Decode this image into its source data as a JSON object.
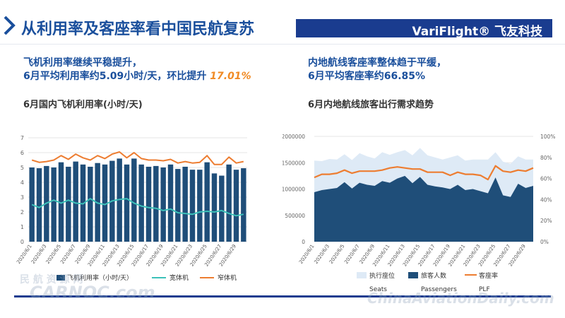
{
  "header": {
    "title": "从利用率及客座率看中国民航复苏",
    "brand": "VariFlight® 飞友科技"
  },
  "left": {
    "headline_line1": "飞机利用率继续平稳提升，",
    "headline_line2": "6月平均利用率约5.09小时/天，环比提升",
    "headline_highlight": "17.01%",
    "chart_title": "6月国内飞机利用率(小时/天)"
  },
  "right": {
    "headline_line1": "内地航线客座率整体趋于平缓，",
    "headline_line2": "6月平均客座率约66.85%",
    "chart_title": "6月内地航线旅客出行需求趋势"
  },
  "watermarks": {
    "left_top": "民 航 资 源 网",
    "left_bottom": "CARNOC.com",
    "right": "ChinaAviationDaily.com"
  },
  "colors": {
    "title_blue": "#1a4f9c",
    "brand_bar": "#1a3c8f",
    "bar_navy": "#1f4e79",
    "widebody_teal": "#3cc1b9",
    "narrowbody_orange": "#ed7d31",
    "seats_light": "#deeaf6",
    "passengers_navy": "#1f4e79",
    "highlight_orange": "#f08a24"
  },
  "chart_data": [
    {
      "type": "bar",
      "title": "6月国内飞机利用率(小时/天)",
      "categories": [
        "2020/6/1",
        "2020/6/2",
        "2020/6/3",
        "2020/6/4",
        "2020/6/5",
        "2020/6/6",
        "2020/6/7",
        "2020/6/8",
        "2020/6/9",
        "2020/6/10",
        "2020/6/11",
        "2020/6/12",
        "2020/6/13",
        "2020/6/14",
        "2020/6/15",
        "2020/6/16",
        "2020/6/17",
        "2020/6/18",
        "2020/6/19",
        "2020/6/20",
        "2020/6/21",
        "2020/6/22",
        "2020/6/23",
        "2020/6/24",
        "2020/6/25",
        "2020/6/26",
        "2020/6/27",
        "2020/6/28",
        "2020/6/29",
        "2020/6/30"
      ],
      "tick_labels": [
        "2020/6/1",
        "2020/6/3",
        "2020/6/5",
        "2020/6/7",
        "2020/6/9",
        "2020/6/11",
        "2020/6/13",
        "2020/6/15",
        "2020/6/17",
        "2020/6/19",
        "2020/6/21",
        "2020/6/23",
        "2020/6/25",
        "2020/6/27",
        "2020/6/29"
      ],
      "series": [
        {
          "name": "飞机利用率（小时/天）",
          "type": "bar",
          "values": [
            5.0,
            4.95,
            5.1,
            5.0,
            5.35,
            5.05,
            5.4,
            5.2,
            5.05,
            5.3,
            5.2,
            5.45,
            5.6,
            5.2,
            5.6,
            5.2,
            5.05,
            5.1,
            5.0,
            5.2,
            4.9,
            5.05,
            4.85,
            4.85,
            5.35,
            4.6,
            4.45,
            5.2,
            4.85,
            4.95
          ]
        },
        {
          "name": "宽体机",
          "type": "line",
          "values": [
            2.5,
            2.3,
            2.6,
            2.8,
            2.6,
            2.8,
            2.6,
            2.55,
            2.9,
            2.6,
            2.5,
            2.75,
            2.85,
            2.9,
            2.6,
            2.4,
            2.3,
            2.25,
            2.1,
            2.2,
            1.95,
            1.9,
            1.85,
            2.0,
            2.05,
            2.0,
            2.1,
            1.9,
            1.75,
            1.85
          ]
        },
        {
          "name": "窄体机",
          "type": "line",
          "values": [
            5.5,
            5.35,
            5.4,
            5.5,
            5.8,
            5.55,
            5.9,
            5.65,
            5.5,
            5.8,
            5.6,
            5.9,
            6.05,
            5.65,
            6.0,
            5.6,
            5.5,
            5.5,
            5.45,
            5.55,
            5.3,
            5.4,
            5.3,
            5.35,
            5.8,
            5.2,
            5.2,
            5.7,
            5.3,
            5.4
          ]
        }
      ],
      "ylim": [
        0,
        7
      ],
      "yticks": [
        0,
        1,
        2,
        3,
        4,
        5,
        6,
        7
      ],
      "legend": "bottom"
    },
    {
      "type": "area",
      "title": "6月内地航线旅客出行需求趋势",
      "categories": [
        "2020/6/1",
        "2020/6/2",
        "2020/6/3",
        "2020/6/4",
        "2020/6/5",
        "2020/6/6",
        "2020/6/7",
        "2020/6/8",
        "2020/6/9",
        "2020/6/10",
        "2020/6/11",
        "2020/6/12",
        "2020/6/13",
        "2020/6/14",
        "2020/6/15",
        "2020/6/16",
        "2020/6/17",
        "2020/6/18",
        "2020/6/19",
        "2020/6/20",
        "2020/6/21",
        "2020/6/22",
        "2020/6/23",
        "2020/6/24",
        "2020/6/25",
        "2020/6/26",
        "2020/6/27",
        "2020/6/28",
        "2020/6/29",
        "2020/6/30"
      ],
      "tick_labels": [
        "2020/6/1",
        "2020/6/3",
        "2020/6/5",
        "2020/6/7",
        "2020/6/9",
        "2020/6/11",
        "2020/6/13",
        "2020/6/15",
        "2020/6/17",
        "2020/6/19",
        "2020/6/21",
        "2020/6/23",
        "2020/6/25",
        "2020/6/27",
        "2020/6/29"
      ],
      "series": [
        {
          "name": "执行座位",
          "sublabel": "Seats",
          "type": "area",
          "values": [
            1540000,
            1530000,
            1570000,
            1560000,
            1660000,
            1550000,
            1680000,
            1620000,
            1580000,
            1700000,
            1650000,
            1700000,
            1740000,
            1640000,
            1780000,
            1640000,
            1600000,
            1560000,
            1600000,
            1640000,
            1540000,
            1560000,
            1560000,
            1560000,
            1700000,
            1520000,
            1480000,
            1620000,
            1560000,
            1560000
          ]
        },
        {
          "name": "旅客人数",
          "sublabel": "Passengers",
          "type": "area",
          "values": [
            940000,
            980000,
            1000000,
            1020000,
            1130000,
            1010000,
            1120000,
            1080000,
            1060000,
            1150000,
            1120000,
            1200000,
            1250000,
            1110000,
            1230000,
            1080000,
            1050000,
            1030000,
            1000000,
            1080000,
            980000,
            1000000,
            960000,
            920000,
            1220000,
            880000,
            850000,
            1100000,
            1020000,
            1060000
          ]
        },
        {
          "name": "客座率",
          "sublabel": "PLF",
          "type": "line",
          "axis": "right",
          "values": [
            0.61,
            0.64,
            0.64,
            0.65,
            0.68,
            0.65,
            0.67,
            0.67,
            0.67,
            0.68,
            0.7,
            0.71,
            0.7,
            0.69,
            0.69,
            0.66,
            0.66,
            0.66,
            0.63,
            0.66,
            0.64,
            0.64,
            0.63,
            0.59,
            0.72,
            0.67,
            0.66,
            0.68,
            0.67,
            0.7
          ]
        }
      ],
      "ylim": [
        0,
        2000000
      ],
      "yticks": [
        0,
        500000,
        1000000,
        1500000,
        2000000
      ],
      "y2lim": [
        0,
        1
      ],
      "y2ticks": [
        "0%",
        "20%",
        "40%",
        "60%",
        "80%",
        "100%"
      ],
      "legend": "bottom"
    }
  ]
}
